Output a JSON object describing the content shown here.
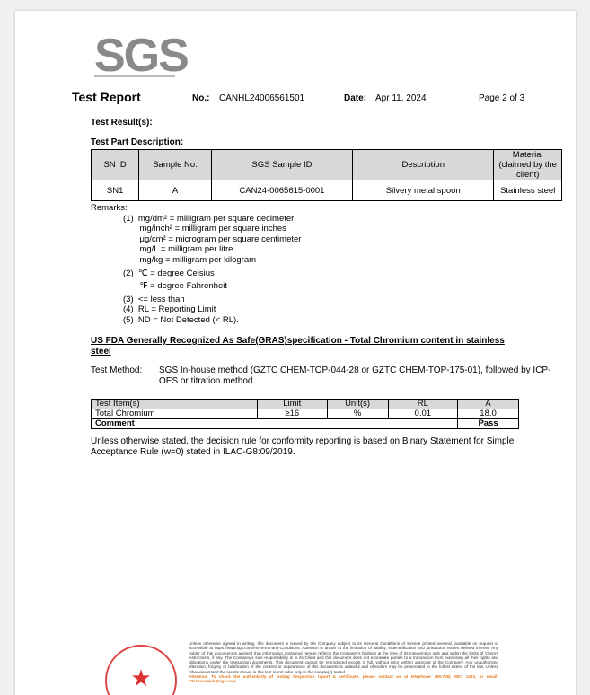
{
  "logo": "SGS",
  "header": {
    "title": "Test Report",
    "no_label": "No.:",
    "no_value": "CANHL24006561501",
    "date_label": "Date:",
    "date_value": "Apr 11, 2024",
    "page": "Page 2 of 3"
  },
  "results_label": "Test Result(s):",
  "part_label": "Test Part Description:",
  "part_table": {
    "headers": [
      "SN ID",
      "Sample No.",
      "SGS Sample ID",
      "Description",
      "Material (claimed by the client)"
    ],
    "rows": [
      [
        "SN1",
        "A",
        "CAN24-0065615-0001",
        "Silvery metal spoon",
        "Stainless steel"
      ]
    ]
  },
  "remarks": {
    "label": "Remarks:",
    "lines": [
      "(1)  mg/dm² = milligram per square decimeter",
      "       mg/inch² = milligram per square inches",
      "       μg/cm² = microgram per square centimeter",
      "       mg/L = milligram per litre",
      "       mg/kg = milligram per kilogram",
      "(2)  ℃ = degree Celsius",
      "       ℉ = degree Fahrenheit",
      "(3)  <= less than",
      "(4)  RL = Reporting Limit",
      "(5)  ND = Not Detected (< RL)."
    ]
  },
  "section_title": "US FDA Generally Recognized As Safe(GRAS)specification - Total Chromium content in stainless steel",
  "method": {
    "label": "Test Method:",
    "text": "SGS In-house method (GZTC CHEM-TOP-044-28 or GZTC CHEM-TOP-175-01), followed by ICP-OES or titration method."
  },
  "result_table": {
    "headers": [
      "Test Item(s)",
      "Limit",
      "Unit(s)",
      "RL",
      "A"
    ],
    "rows": [
      [
        "Total Chromium",
        "≥16",
        "%",
        "0.01",
        "18.0"
      ]
    ],
    "comment_label": "Comment",
    "comment_value": "Pass"
  },
  "decision_rule": "Unless otherwise stated, the decision rule for conformity reporting is based on Binary Statement for Simple Acceptance Rule (w=0) stated in ILAC-G8:09/2019.",
  "footer": {
    "text": "Unless otherwise agreed in writing, this document is issued by the Company subject to its General Conditions of Service printed overleaf, available on request or accessible at https://www.sgs.com/en/Terms-and-Conditions. Attention is drawn to the limitation of liability, indemnification and jurisdiction issues defined therein. Any holder of this document is advised that information contained hereon reflects the Company's findings at the time of its intervention only and within the limits of Client's instructions, if any. The Company's sole responsibility is to its Client and this document does not exonerate parties to a transaction from exercising all their rights and obligations under the transaction documents. This document cannot be reproduced except in full, without prior written approval of the Company. Any unauthorized alteration, forgery or falsification of the content or appearance of this document is unlawful and offenders may be prosecuted to the fullest extent of the law. Unless otherwise stated the results shown in this test report refer only to the sample(s) tested.",
    "attention": "Attention: To check the authenticity of testing /inspection report & certificate, please contact us at telephone: (86-755) 8307 1443, or email: CN.Doccheck@sgs.com"
  }
}
